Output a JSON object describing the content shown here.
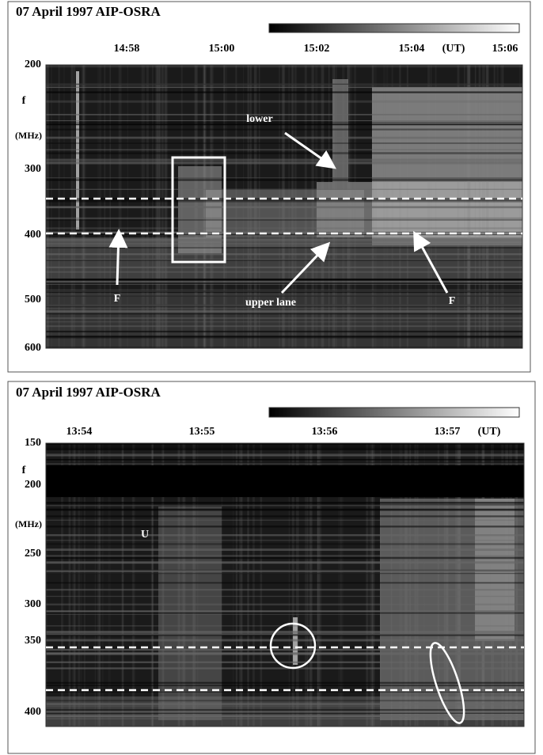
{
  "panels": [
    {
      "title": "07 April 1997 AIP-OSRA",
      "x_labels": [
        "14:58",
        "15:00",
        "15:02",
        "15:04",
        "(UT)",
        "15:06"
      ],
      "y_labels": [
        200,
        300,
        400,
        500,
        600
      ],
      "axis_label": "f",
      "axis_unit": "(MHz)",
      "annotations": [
        "lower",
        "upper lane",
        "F",
        "F"
      ]
    },
    {
      "title": "07 April 1997 AIP-OSRA",
      "x_labels": [
        "13:54",
        "13:55",
        "13:56",
        "13:57",
        "(UT)"
      ],
      "y_labels": [
        150,
        200,
        250,
        300,
        350,
        400
      ],
      "axis_label": "f",
      "axis_unit": "(MHz)",
      "annotations": [
        "U"
      ]
    }
  ]
}
